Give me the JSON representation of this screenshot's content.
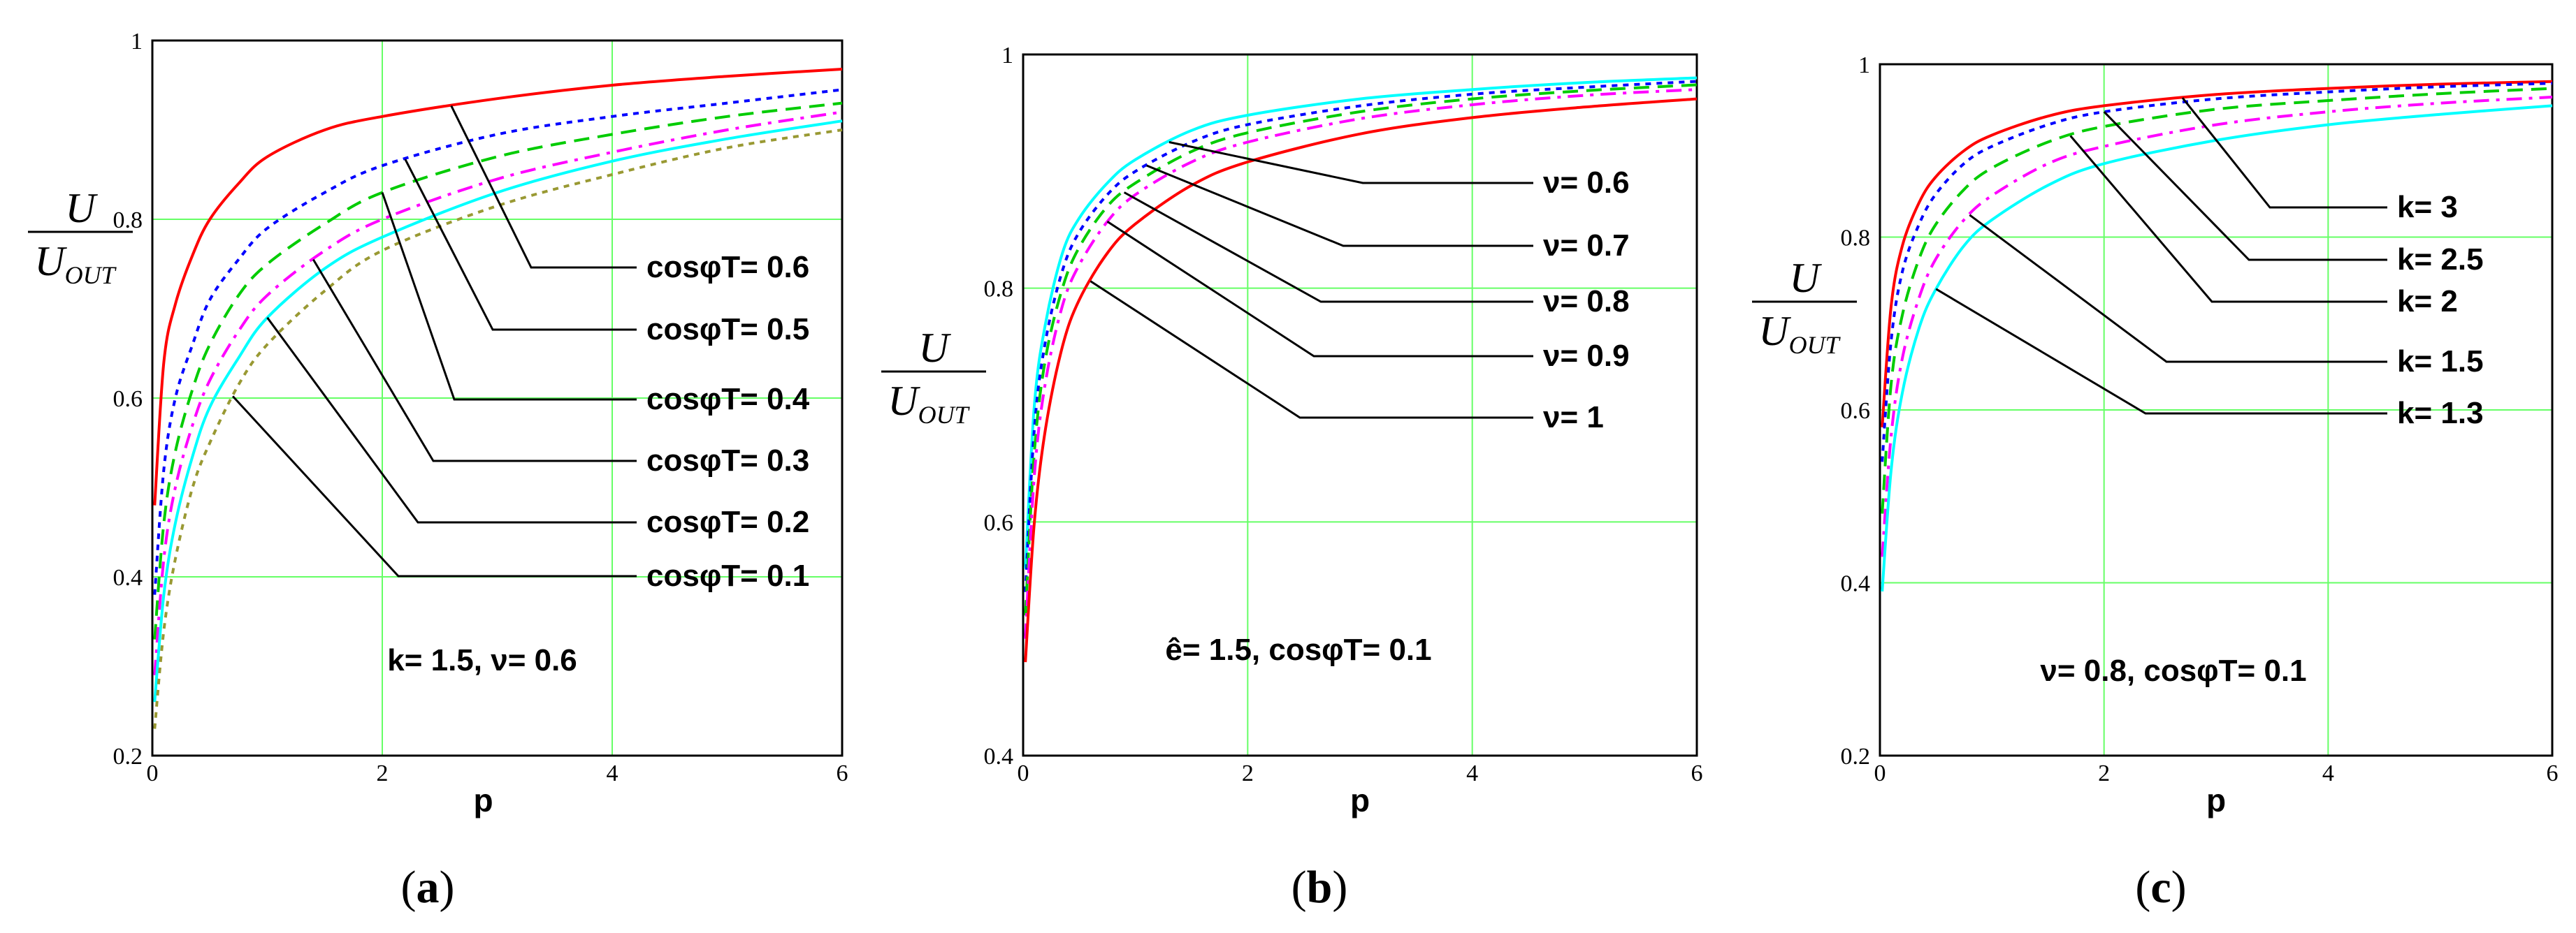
{
  "chart_data": [
    {
      "type": "line",
      "caption": "a",
      "xlabel": "p",
      "ylabel_num": "U",
      "ylabel_den_main": "U",
      "ylabel_den_sub": "OUT",
      "xlim": [
        0,
        6
      ],
      "ylim": [
        0.2,
        1
      ],
      "xticks": [
        "0",
        "2",
        "4",
        "6"
      ],
      "yticks": [
        "0.2",
        "0.4",
        "0.6",
        "0.8",
        "1"
      ],
      "grid": true,
      "note": "k= 1.5, ν= 0.6",
      "series": [
        {
          "name": "cosφT= 0.6",
          "color": "#ff0000",
          "dash": "solid",
          "x": [
            0.02,
            0.1,
            0.2,
            0.35,
            0.5,
            0.75,
            1,
            1.5,
            2,
            3,
            4,
            5,
            6
          ],
          "y": [
            0.48,
            0.64,
            0.705,
            0.76,
            0.8,
            0.84,
            0.87,
            0.9,
            0.915,
            0.935,
            0.95,
            0.96,
            0.968
          ]
        },
        {
          "name": "cosφT= 0.5",
          "color": "#0000ff",
          "dash": "dotted",
          "x": [
            0.02,
            0.1,
            0.2,
            0.35,
            0.5,
            0.75,
            1,
            1.5,
            2,
            3,
            4,
            5,
            6
          ],
          "y": [
            0.38,
            0.52,
            0.6,
            0.66,
            0.71,
            0.755,
            0.79,
            0.83,
            0.86,
            0.895,
            0.915,
            0.93,
            0.945
          ]
        },
        {
          "name": "cosφT= 0.4",
          "color": "#00cc00",
          "dash": "dashed",
          "x": [
            0.02,
            0.1,
            0.2,
            0.35,
            0.5,
            0.75,
            1,
            1.5,
            2,
            3,
            4,
            5,
            6
          ],
          "y": [
            0.33,
            0.46,
            0.54,
            0.61,
            0.66,
            0.715,
            0.75,
            0.795,
            0.83,
            0.87,
            0.895,
            0.915,
            0.93
          ]
        },
        {
          "name": "cosφT= 0.3",
          "color": "#ff00ff",
          "dash": "dashdot",
          "x": [
            0.02,
            0.1,
            0.2,
            0.35,
            0.5,
            0.75,
            1,
            1.5,
            2,
            3,
            4,
            5,
            6
          ],
          "y": [
            0.29,
            0.42,
            0.5,
            0.57,
            0.62,
            0.675,
            0.715,
            0.765,
            0.8,
            0.845,
            0.875,
            0.9,
            0.92
          ]
        },
        {
          "name": "cosφT= 0.2",
          "color": "#00ffff",
          "dash": "solid",
          "x": [
            0.02,
            0.1,
            0.2,
            0.35,
            0.5,
            0.75,
            1,
            1.5,
            2,
            3,
            4,
            5,
            6
          ],
          "y": [
            0.26,
            0.38,
            0.46,
            0.535,
            0.59,
            0.645,
            0.69,
            0.745,
            0.78,
            0.83,
            0.865,
            0.89,
            0.91
          ]
        },
        {
          "name": "cosφT= 0.1",
          "color": "#999933",
          "dash": "dotted",
          "x": [
            0.02,
            0.1,
            0.2,
            0.35,
            0.5,
            0.75,
            1,
            1.5,
            2,
            3,
            4,
            5,
            6
          ],
          "y": [
            0.23,
            0.34,
            0.42,
            0.5,
            0.55,
            0.615,
            0.66,
            0.72,
            0.765,
            0.815,
            0.85,
            0.88,
            0.9
          ]
        }
      ]
    },
    {
      "type": "line",
      "caption": "b",
      "xlabel": "p",
      "ylabel_num": "U",
      "ylabel_den_main": "U",
      "ylabel_den_sub": "OUT",
      "xlim": [
        0,
        6
      ],
      "ylim": [
        0.4,
        1
      ],
      "xticks": [
        "0",
        "2",
        "4",
        "6"
      ],
      "yticks": [
        "0.4",
        "0.6",
        "0.8",
        "1"
      ],
      "grid": true,
      "note": "ê= 1.5, cosφT= 0.1",
      "series": [
        {
          "name": "ν= 0.6",
          "color": "#00ffff",
          "dash": "solid",
          "x": [
            0.02,
            0.1,
            0.2,
            0.35,
            0.5,
            0.75,
            1,
            1.5,
            2,
            3,
            4,
            5,
            6
          ],
          "y": [
            0.56,
            0.7,
            0.77,
            0.83,
            0.86,
            0.89,
            0.91,
            0.935,
            0.948,
            0.962,
            0.97,
            0.976,
            0.98
          ]
        },
        {
          "name": "ν= 0.7",
          "color": "#0000ff",
          "dash": "dotted",
          "x": [
            0.02,
            0.1,
            0.2,
            0.35,
            0.5,
            0.75,
            1,
            1.5,
            2,
            3,
            4,
            5,
            6
          ],
          "y": [
            0.54,
            0.68,
            0.755,
            0.815,
            0.848,
            0.88,
            0.9,
            0.925,
            0.94,
            0.956,
            0.966,
            0.972,
            0.977
          ]
        },
        {
          "name": "ν= 0.8",
          "color": "#00cc00",
          "dash": "dashed",
          "x": [
            0.02,
            0.1,
            0.2,
            0.35,
            0.5,
            0.75,
            1,
            1.5,
            2,
            3,
            4,
            5,
            6
          ],
          "y": [
            0.52,
            0.66,
            0.74,
            0.8,
            0.835,
            0.87,
            0.89,
            0.917,
            0.933,
            0.951,
            0.962,
            0.969,
            0.974
          ]
        },
        {
          "name": "ν= 0.9",
          "color": "#ff00ff",
          "dash": "dashdot",
          "x": [
            0.02,
            0.1,
            0.2,
            0.35,
            0.5,
            0.75,
            1,
            1.5,
            2,
            3,
            4,
            5,
            6
          ],
          "y": [
            0.5,
            0.64,
            0.72,
            0.785,
            0.82,
            0.857,
            0.88,
            0.908,
            0.925,
            0.945,
            0.957,
            0.965,
            0.97
          ]
        },
        {
          "name": "ν= 1",
          "color": "#ff0000",
          "dash": "solid",
          "x": [
            0.02,
            0.1,
            0.2,
            0.35,
            0.5,
            0.75,
            1,
            1.5,
            2,
            3,
            4,
            5,
            6
          ],
          "y": [
            0.48,
            0.6,
            0.68,
            0.75,
            0.79,
            0.83,
            0.855,
            0.888,
            0.908,
            0.932,
            0.946,
            0.955,
            0.962
          ]
        }
      ]
    },
    {
      "type": "line",
      "caption": "c",
      "xlabel": "p",
      "ylabel_num": "U",
      "ylabel_den_main": "U",
      "ylabel_den_sub": "OUT",
      "xlim": [
        0,
        6
      ],
      "ylim": [
        0.2,
        1
      ],
      "xticks": [
        "0",
        "2",
        "4",
        "6"
      ],
      "yticks": [
        "0.2",
        "0.4",
        "0.6",
        "0.8",
        "1"
      ],
      "grid": true,
      "note": "ν= 0.8, cosφT= 0.1",
      "series": [
        {
          "name": "k= 3",
          "color": "#ff0000",
          "dash": "solid",
          "x": [
            0.02,
            0.1,
            0.2,
            0.35,
            0.5,
            0.75,
            1,
            1.5,
            2,
            3,
            4,
            5,
            6
          ],
          "y": [
            0.58,
            0.72,
            0.79,
            0.84,
            0.87,
            0.9,
            0.918,
            0.94,
            0.952,
            0.965,
            0.972,
            0.977,
            0.98
          ]
        },
        {
          "name": "k= 2.5",
          "color": "#0000ff",
          "dash": "dotted",
          "x": [
            0.02,
            0.1,
            0.2,
            0.35,
            0.5,
            0.75,
            1,
            1.5,
            2,
            3,
            4,
            5,
            6
          ],
          "y": [
            0.54,
            0.68,
            0.76,
            0.815,
            0.85,
            0.885,
            0.905,
            0.93,
            0.945,
            0.96,
            0.968,
            0.974,
            0.978
          ]
        },
        {
          "name": "k= 2",
          "color": "#00cc00",
          "dash": "dashed",
          "x": [
            0.02,
            0.1,
            0.2,
            0.35,
            0.5,
            0.75,
            1,
            1.5,
            2,
            3,
            4,
            5,
            6
          ],
          "y": [
            0.48,
            0.63,
            0.71,
            0.775,
            0.815,
            0.855,
            0.88,
            0.91,
            0.928,
            0.948,
            0.958,
            0.966,
            0.972
          ]
        },
        {
          "name": "k= 1.5",
          "color": "#ff00ff",
          "dash": "dashdot",
          "x": [
            0.02,
            0.1,
            0.2,
            0.35,
            0.5,
            0.75,
            1,
            1.5,
            2,
            3,
            4,
            5,
            6
          ],
          "y": [
            0.43,
            0.57,
            0.66,
            0.73,
            0.775,
            0.82,
            0.848,
            0.885,
            0.905,
            0.93,
            0.945,
            0.955,
            0.962
          ]
        },
        {
          "name": "k= 1.3",
          "color": "#00ffff",
          "dash": "solid",
          "x": [
            0.02,
            0.1,
            0.2,
            0.35,
            0.5,
            0.75,
            1,
            1.5,
            2,
            3,
            4,
            5,
            6
          ],
          "y": [
            0.39,
            0.53,
            0.62,
            0.695,
            0.74,
            0.79,
            0.82,
            0.86,
            0.885,
            0.912,
            0.93,
            0.942,
            0.952
          ]
        }
      ]
    }
  ]
}
